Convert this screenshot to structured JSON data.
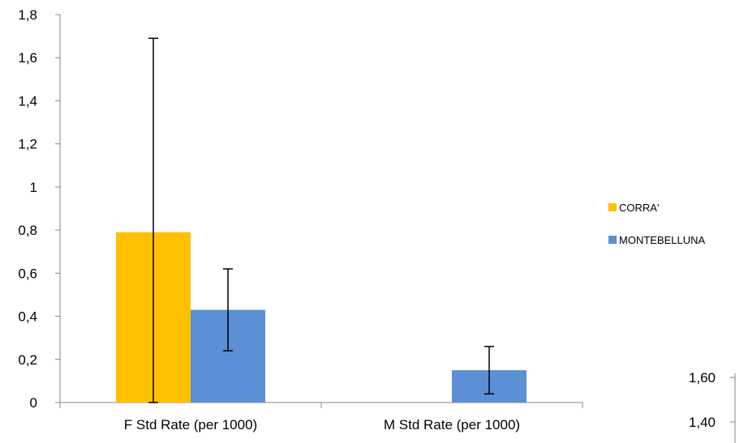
{
  "chart_data": [
    {
      "type": "bar",
      "title": "",
      "xlabel": "",
      "ylabel": "",
      "categories": [
        "F Std Rate (per 1000)",
        "M Std Rate (per 1000)"
      ],
      "series": [
        {
          "name": "CORRA'",
          "color": "#FFC000",
          "values": [
            0.79,
            0
          ],
          "error_low": [
            0,
            null
          ],
          "error_high": [
            1.69,
            null
          ]
        },
        {
          "name": "MONTEBELLUNA",
          "color": "#5B8FD6",
          "values": [
            0.43,
            0.15
          ],
          "error_low": [
            0.24,
            0.04
          ],
          "error_high": [
            0.62,
            0.26
          ]
        }
      ],
      "ylim": [
        0,
        1.8
      ],
      "yticks": [
        "0",
        "0,2",
        "0,4",
        "0,6",
        "0,8",
        "1",
        "1,2",
        "1,4",
        "1,6",
        "1,8"
      ],
      "grid": false,
      "legend_position": "right"
    },
    {
      "type": "bar",
      "partial": true,
      "yticks": [
        "1,40",
        "1,60"
      ],
      "ytick_values": [
        1.4,
        1.6
      ]
    }
  ]
}
